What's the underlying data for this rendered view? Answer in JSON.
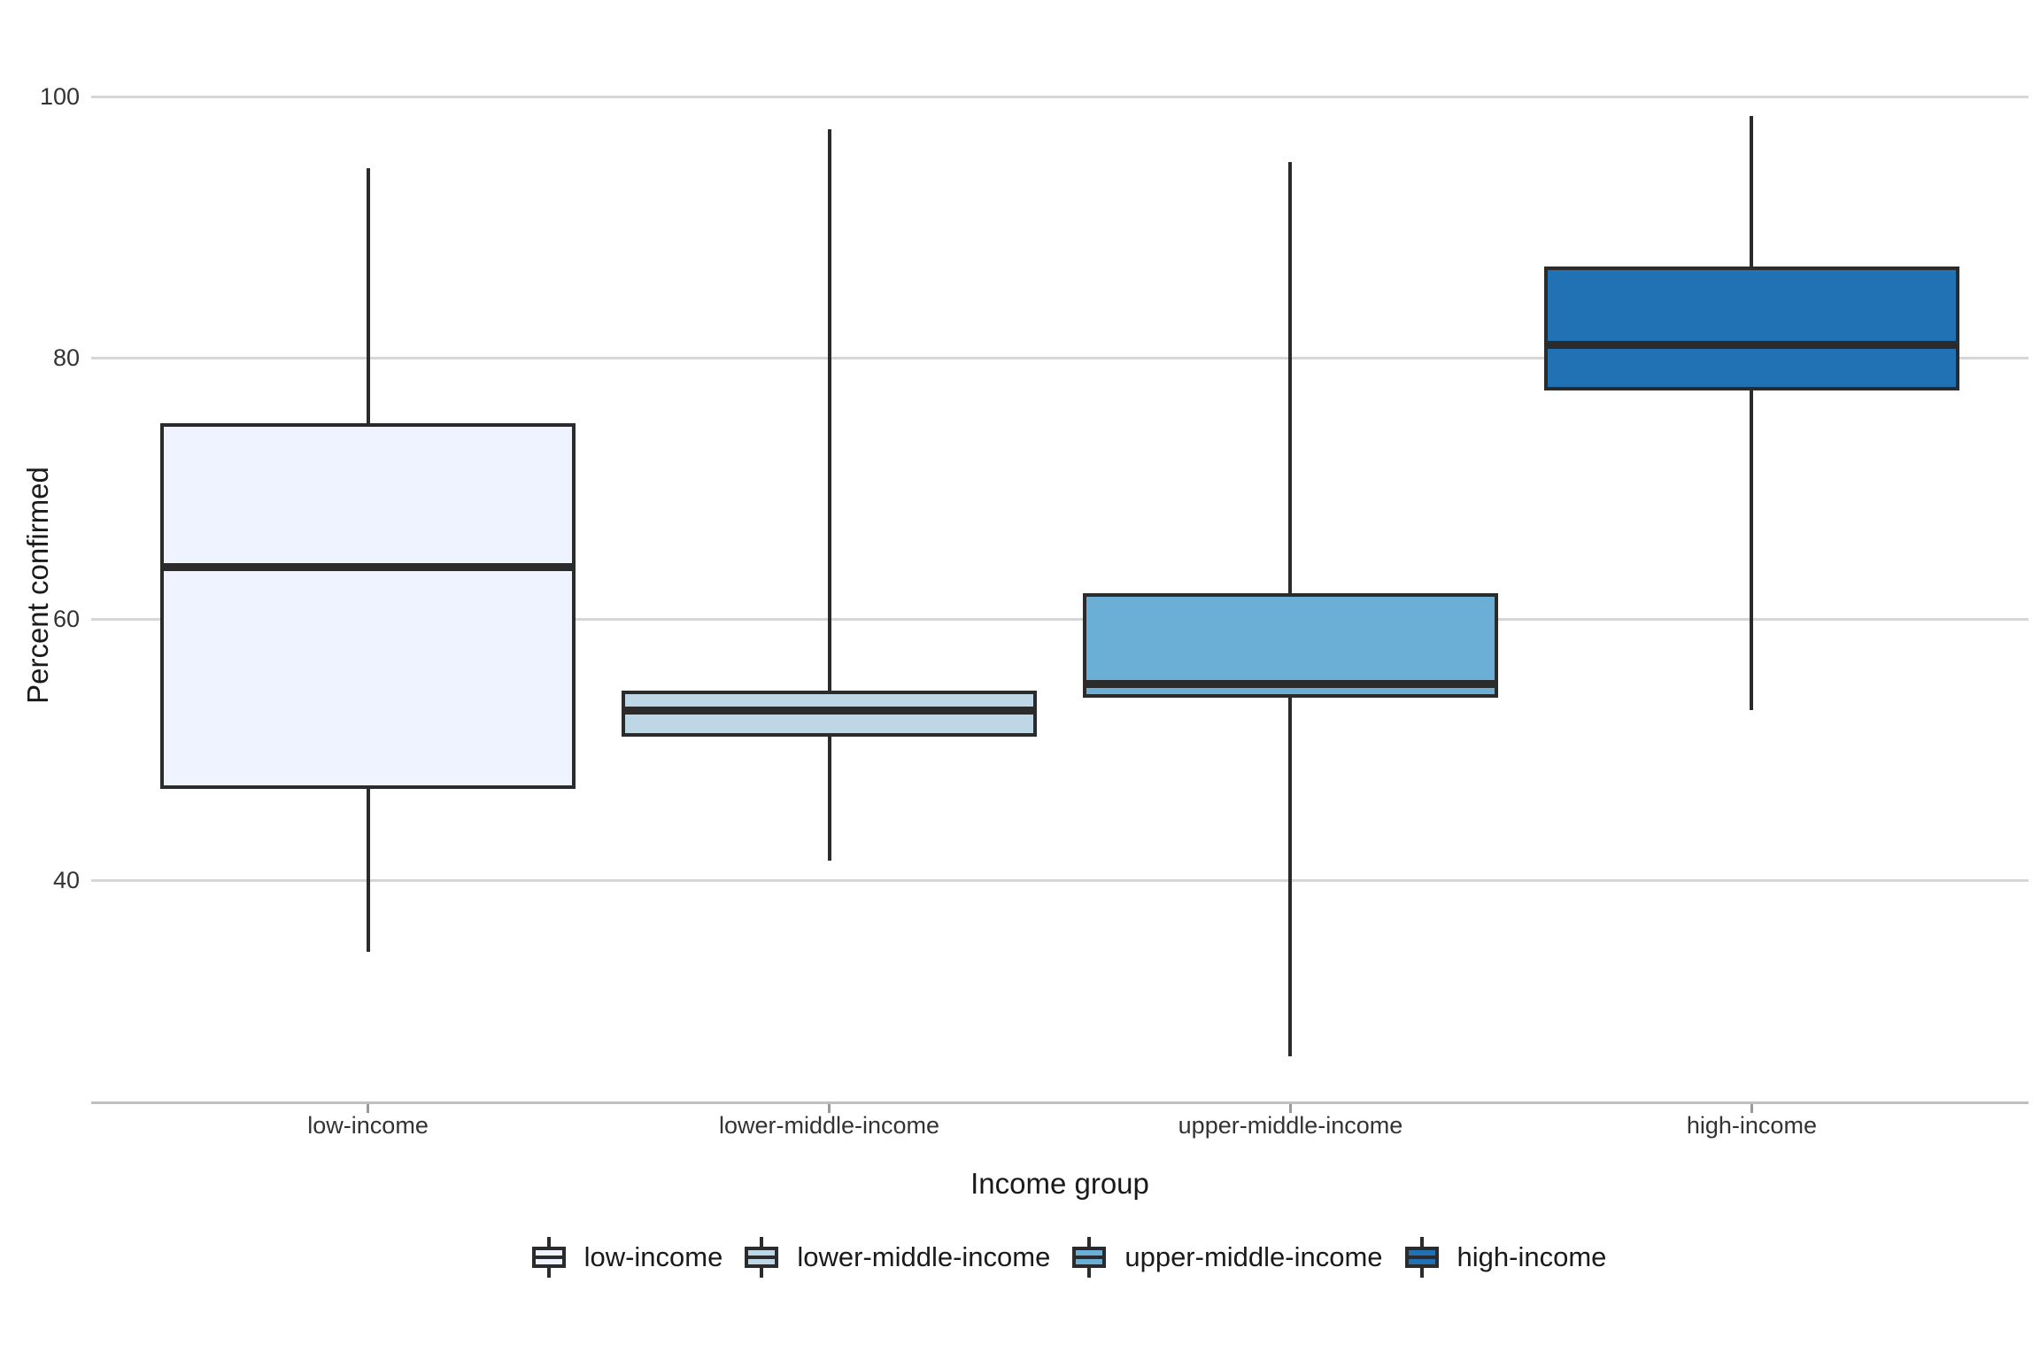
{
  "chart_data": {
    "type": "boxplot",
    "title": "",
    "xlabel": "Income group",
    "ylabel": "Percent confirmed",
    "categories": [
      "low-income",
      "lower-middle-income",
      "upper-middle-income",
      "high-income"
    ],
    "y_ticks": [
      40,
      60,
      80,
      100
    ],
    "ylim": [
      23,
      102
    ],
    "grid": "horizontal-only",
    "legend_position": "bottom",
    "series": [
      {
        "name": "low-income",
        "fill": "#EFF3FF",
        "min": 34.5,
        "q1": 47.0,
        "median": 64.0,
        "q3": 75.0,
        "max": 94.5
      },
      {
        "name": "lower-middle-income",
        "fill": "#BDD7E7",
        "min": 41.5,
        "q1": 51.0,
        "median": 53.0,
        "q3": 54.5,
        "max": 97.5
      },
      {
        "name": "upper-middle-income",
        "fill": "#6BAED6",
        "min": 26.5,
        "q1": 54.0,
        "median": 55.0,
        "q3": 62.0,
        "max": 95.0
      },
      {
        "name": "high-income",
        "fill": "#2171B5",
        "min": 53.0,
        "q1": 77.5,
        "median": 81.0,
        "q3": 87.0,
        "max": 98.5
      }
    ]
  },
  "colors": {
    "box_border": "#2b2b2b",
    "gridline": "#d6d6d6",
    "axis_line": "#c0c0c0",
    "tick_mark": "#999999",
    "tick_label": "#333333",
    "axis_title": "#1a1a1a",
    "legend_text": "#1a1a1a",
    "background": "#ffffff"
  }
}
